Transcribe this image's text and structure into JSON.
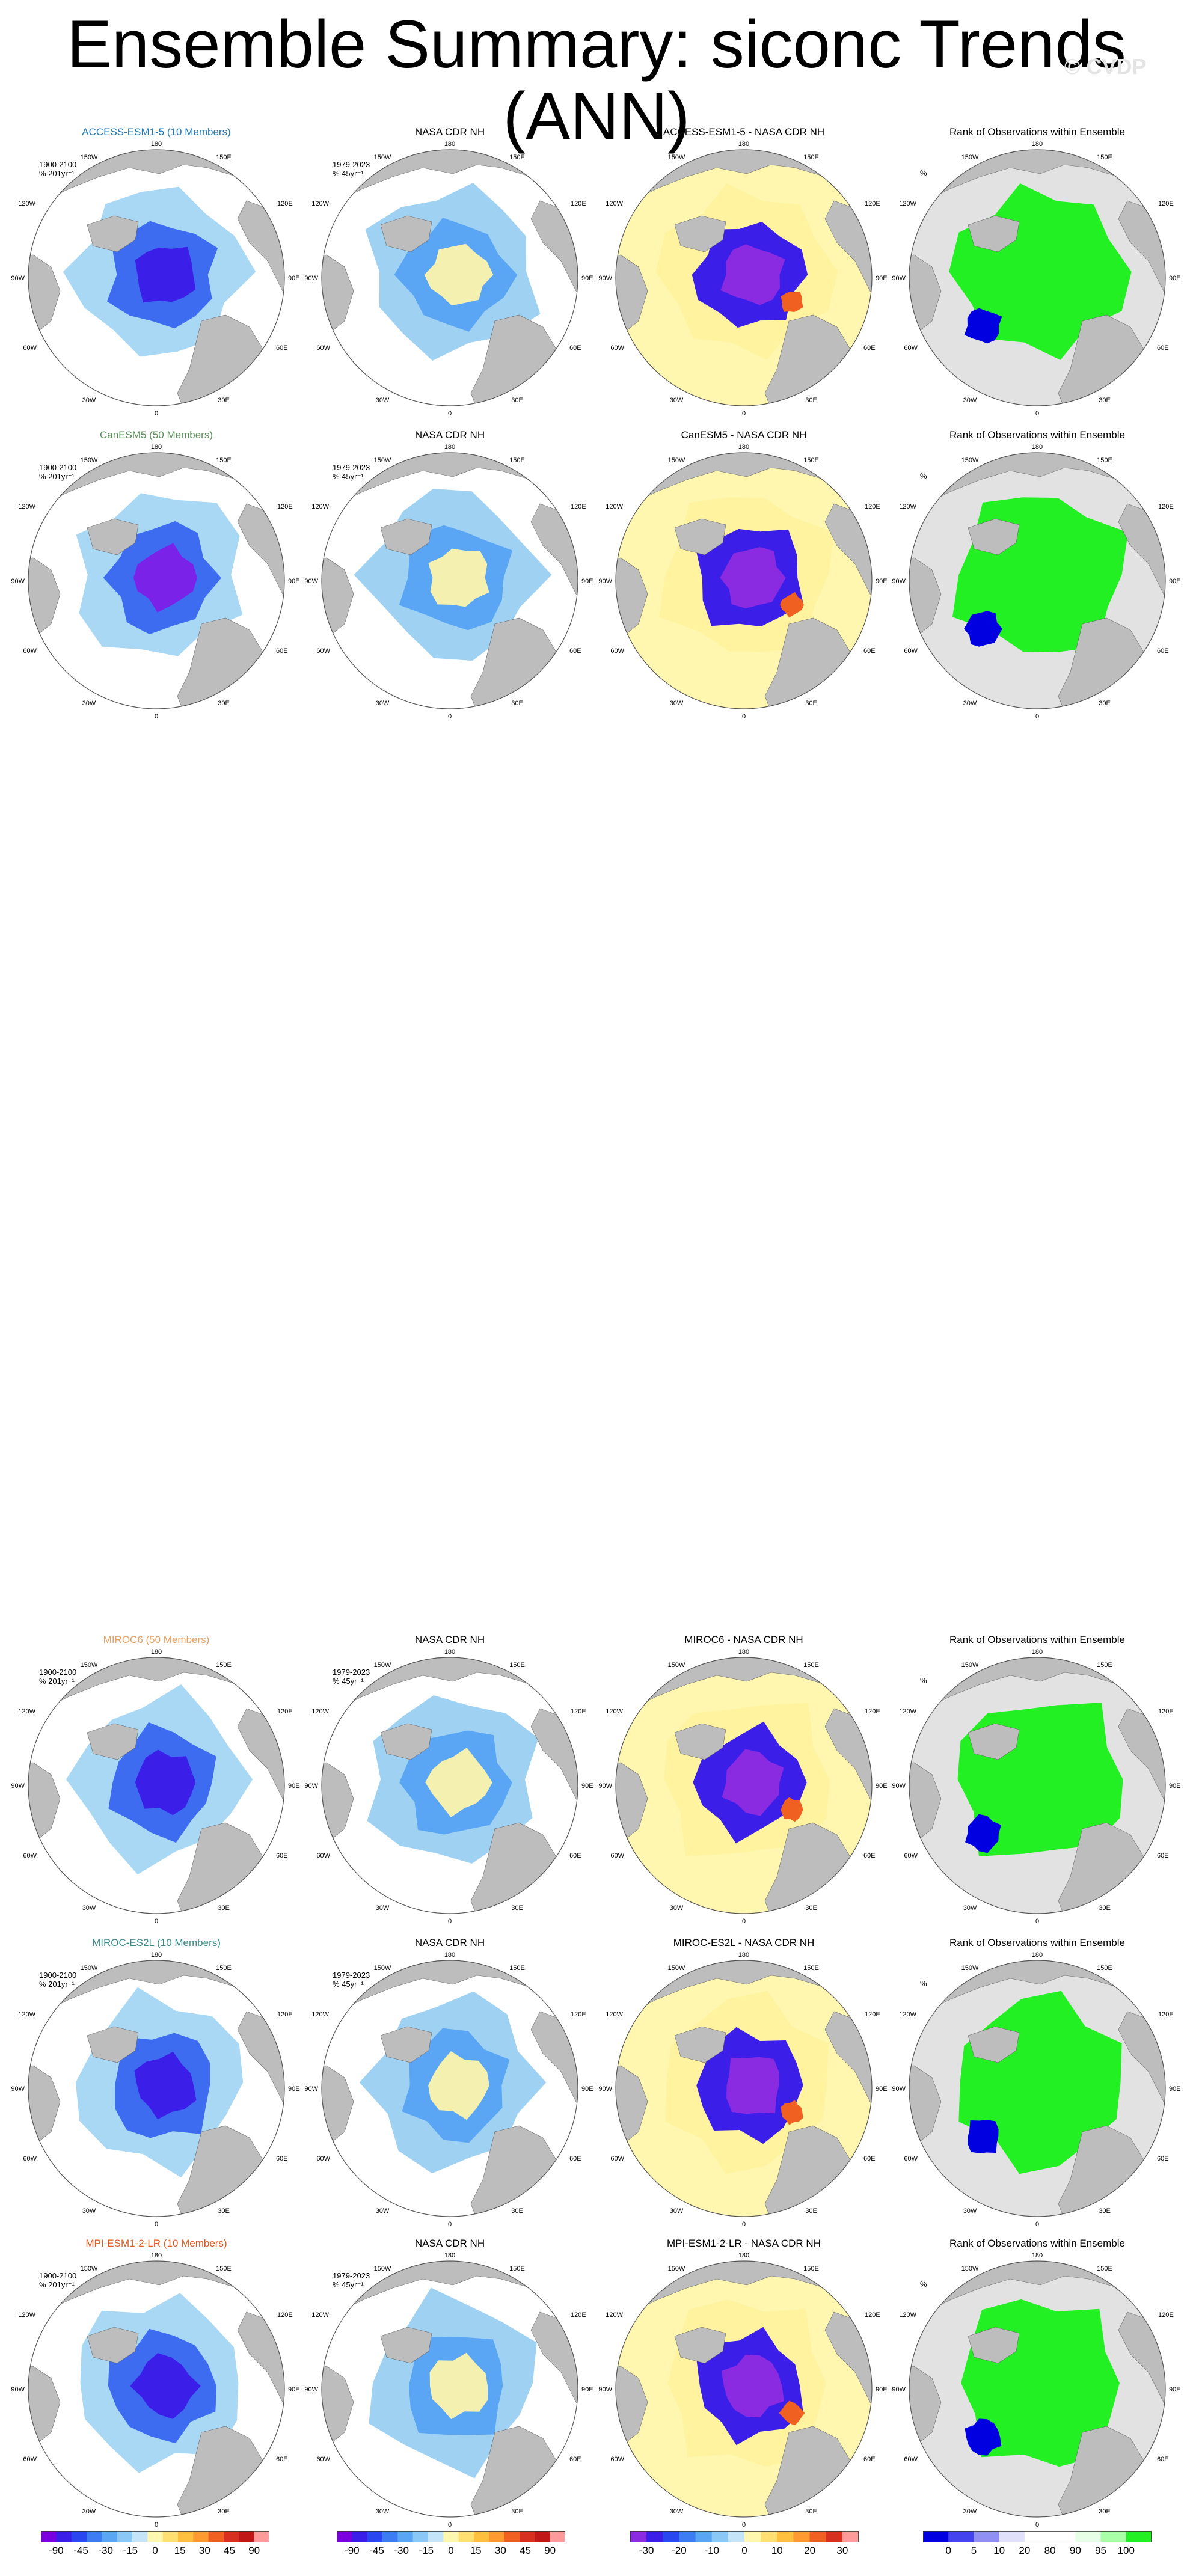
{
  "title": "Ensemble Summary: siconc Trends (ANN)",
  "watermark": "© CVDP",
  "rows": [
    {
      "model_title": "ACCESS-ESM1-5 (10 Members)",
      "model_color": "#1f77b4",
      "model_period": "1900-2100",
      "model_units": "% 201yr⁻¹",
      "obs_title": "NASA CDR NH",
      "obs_period": "1979-2023",
      "obs_units": "% 45yr⁻¹",
      "diff_title": "ACCESS-ESM1-5 - NASA CDR NH",
      "rank_title": "Rank of Observations within Ensemble",
      "rank_units": "%"
    },
    {
      "model_title": "CanESM5 (50 Members)",
      "model_color": "#5a8f5a",
      "model_period": "1900-2100",
      "model_units": "% 201yr⁻¹",
      "obs_title": "NASA CDR NH",
      "obs_period": "1979-2023",
      "obs_units": "% 45yr⁻¹",
      "diff_title": "CanESM5 - NASA CDR NH",
      "rank_title": "Rank of Observations within Ensemble",
      "rank_units": "%"
    },
    {
      "model_title": "MIROC6 (50 Members)",
      "model_color": "#e8a060",
      "model_period": "1900-2100",
      "model_units": "% 201yr⁻¹",
      "obs_title": "NASA CDR NH",
      "obs_period": "1979-2023",
      "obs_units": "% 45yr⁻¹",
      "diff_title": "MIROC6 - NASA CDR NH",
      "rank_title": "Rank of Observations within Ensemble",
      "rank_units": "%"
    },
    {
      "model_title": "MIROC-ES2L (10 Members)",
      "model_color": "#3a8a8a",
      "model_period": "1900-2100",
      "model_units": "% 201yr⁻¹",
      "obs_title": "NASA CDR NH",
      "obs_period": "1979-2023",
      "obs_units": "% 45yr⁻¹",
      "diff_title": "MIROC-ES2L - NASA CDR NH",
      "rank_title": "Rank of Observations within Ensemble",
      "rank_units": "%"
    },
    {
      "model_title": "MPI-ESM1-2-LR (10 Members)",
      "model_color": "#e05a20",
      "model_period": "1900-2100",
      "model_units": "% 201yr⁻¹",
      "obs_title": "NASA CDR NH",
      "obs_period": "1979-2023",
      "obs_units": "% 45yr⁻¹",
      "diff_title": "MPI-ESM1-2-LR - NASA CDR NH",
      "rank_title": "Rank of Observations within Ensemble",
      "rank_units": "%"
    }
  ],
  "map_labels": {
    "top": "180",
    "bottom": "0",
    "left": "90W",
    "right": "90E",
    "ul1": "150W",
    "ul2": "120W",
    "ur1": "150E",
    "ur2": "120E",
    "ll1": "60W",
    "ll2": "30W",
    "lr1": "60E",
    "lr2": "30E"
  },
  "colorbars": {
    "trend": {
      "labels": [
        "-90",
        "-45",
        "-30",
        "-15",
        "0",
        "15",
        "30",
        "45",
        "90"
      ],
      "colors": [
        "#7a00e0",
        "#3b1ee8",
        "#2a46f0",
        "#3d7cf2",
        "#5aa6f4",
        "#8cc8f6",
        "#c4e4fa",
        "#fff7b0",
        "#ffe070",
        "#ffc040",
        "#ff9a30",
        "#f06020",
        "#d83020",
        "#c01818",
        "#ff9a9a"
      ]
    },
    "diff": {
      "labels": [
        "-30",
        "-20",
        "-10",
        "0",
        "10",
        "20",
        "30"
      ],
      "colors": [
        "#8a2be2",
        "#3b1ee8",
        "#2a46f0",
        "#3d7cf2",
        "#5aa6f4",
        "#8cc8f6",
        "#c4e4fa",
        "#fff7b0",
        "#ffe070",
        "#ffc040",
        "#ff9a30",
        "#f06020",
        "#d83020",
        "#ff9a9a"
      ]
    },
    "rank": {
      "labels": [
        "0",
        "5",
        "10",
        "20",
        "80",
        "90",
        "95",
        "100"
      ],
      "colors": [
        "#0000e0",
        "#4444ee",
        "#9090f4",
        "#e0e0fa",
        "#ffffff",
        "#ffffff",
        "#e6ffe6",
        "#a8ffa8",
        "#22f022"
      ]
    }
  }
}
